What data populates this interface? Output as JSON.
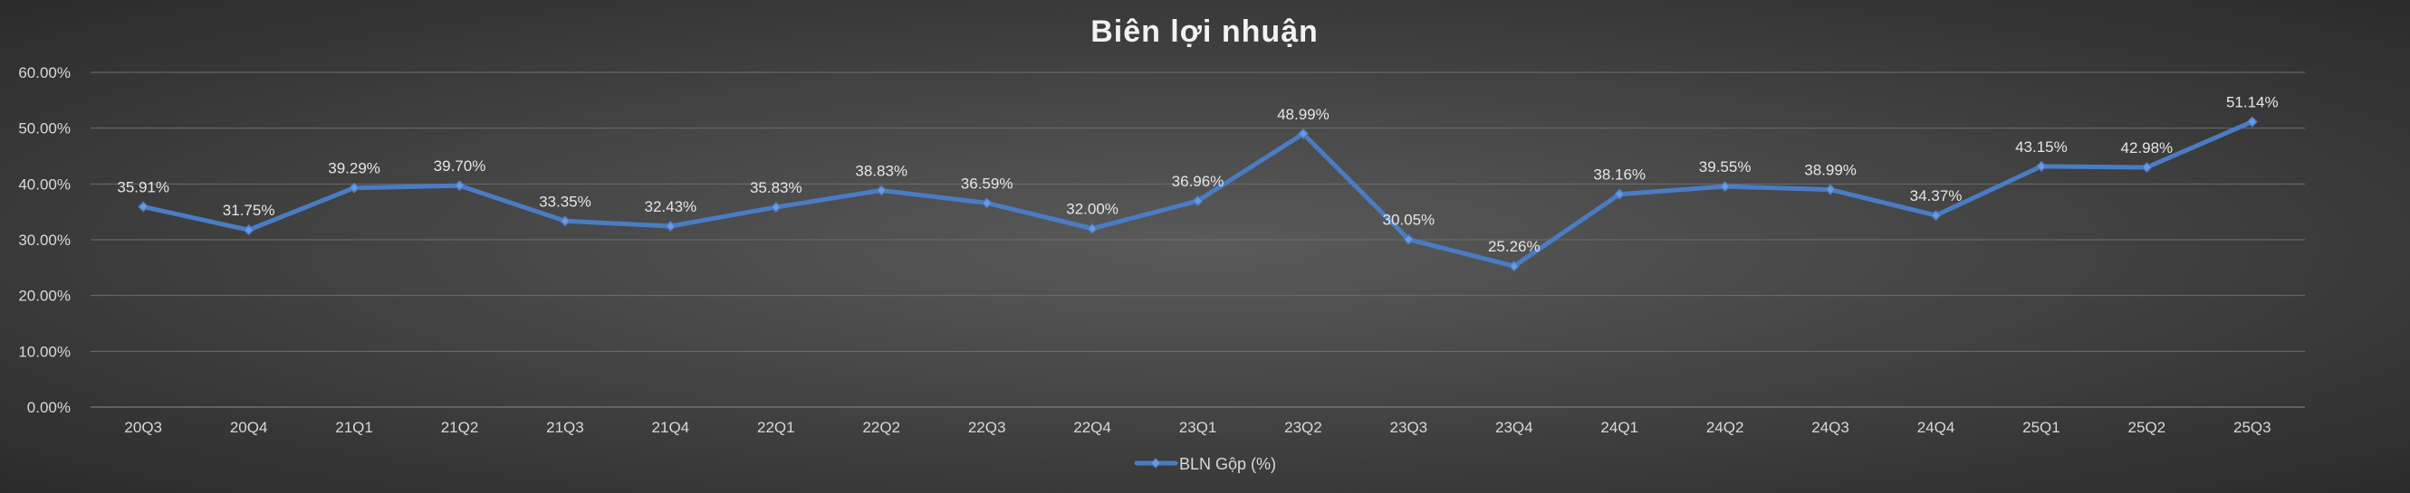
{
  "chart_data": {
    "type": "line",
    "title": "Biên lợi nhuận",
    "xlabel": "",
    "ylabel": "",
    "ylim": [
      0,
      60
    ],
    "yticks": [
      "0.00%",
      "10.00%",
      "20.00%",
      "30.00%",
      "40.00%",
      "50.00%",
      "60.00%"
    ],
    "ytick_values": [
      0,
      10,
      20,
      30,
      40,
      50,
      60
    ],
    "grid": true,
    "legend_position": "bottom",
    "categories": [
      "20Q3",
      "20Q4",
      "21Q1",
      "21Q2",
      "21Q3",
      "21Q4",
      "22Q1",
      "22Q2",
      "22Q3",
      "22Q4",
      "23Q1",
      "23Q2",
      "23Q3",
      "23Q4",
      "24Q1",
      "24Q2",
      "24Q3",
      "24Q4",
      "25Q1",
      "25Q2",
      "25Q3"
    ],
    "series": [
      {
        "name": "BLN Gộp (%)",
        "color": "#4a7cc4",
        "values": [
          35.91,
          31.75,
          39.29,
          39.7,
          33.35,
          32.43,
          35.83,
          38.83,
          36.59,
          32.0,
          36.96,
          48.99,
          30.05,
          25.26,
          38.16,
          39.55,
          38.99,
          34.37,
          43.15,
          42.98,
          51.14
        ],
        "labels": [
          "35.91%",
          "31.75%",
          "39.29%",
          "39.70%",
          "33.35%",
          "32.43%",
          "35.83%",
          "38.83%",
          "36.59%",
          "32.00%",
          "36.96%",
          "48.99%",
          "30.05%",
          "25.26%",
          "38.16%",
          "39.55%",
          "38.99%",
          "34.37%",
          "43.15%",
          "42.98%",
          "51.14%"
        ]
      }
    ]
  }
}
